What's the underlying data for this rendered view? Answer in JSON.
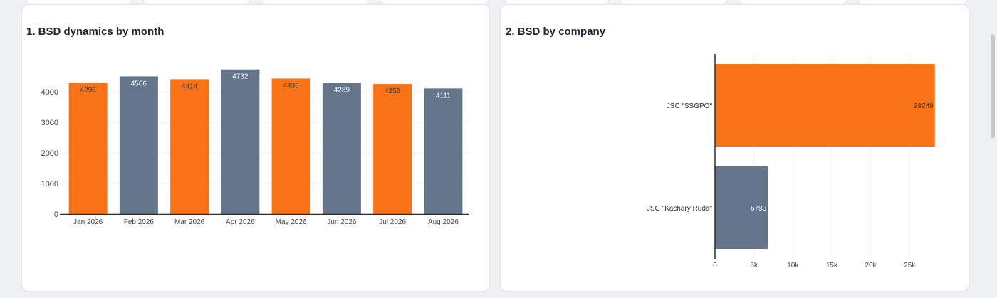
{
  "colors": {
    "orange": "#f97316",
    "slate": "#64748b",
    "grid": "#eceff3",
    "axis": "#2b2b2b",
    "tick_text": "#444444"
  },
  "charts": {
    "monthly": {
      "title": "1. BSD dynamics by month"
    },
    "company": {
      "title": "2. BSD by company"
    }
  },
  "chart_data": [
    {
      "type": "bar",
      "title": "1. BSD dynamics by month",
      "orientation": "vertical",
      "categories": [
        "Jan 2026",
        "Feb 2026",
        "Mar 2026",
        "Apr 2026",
        "May 2026",
        "Jun 2026",
        "Jul 2026",
        "Aug 2026"
      ],
      "values": [
        4296,
        4506,
        4414,
        4732,
        4436,
        4289,
        4258,
        4111
      ],
      "bar_colors": [
        "#f97316",
        "#64748b",
        "#f97316",
        "#64748b",
        "#f97316",
        "#64748b",
        "#f97316",
        "#64748b"
      ],
      "yticks": [
        0,
        1000,
        2000,
        3000,
        4000
      ],
      "ylim": [
        0,
        4981
      ],
      "grid": true,
      "xlabel": "",
      "ylabel": ""
    },
    {
      "type": "bar",
      "title": "2. BSD by company",
      "orientation": "horizontal",
      "categories": [
        "JSC \"SSGPO\"",
        "JSC \"Kachary Ruda\""
      ],
      "values": [
        28249,
        6793
      ],
      "bar_colors": [
        "#f97316",
        "#64748b"
      ],
      "xticks": [
        0,
        5000,
        10000,
        15000,
        20000,
        25000
      ],
      "xtick_labels": [
        "0",
        "5k",
        "10k",
        "15k",
        "20k",
        "25k"
      ],
      "xlim": [
        0,
        29736
      ],
      "grid": true,
      "xlabel": "",
      "ylabel": ""
    }
  ]
}
